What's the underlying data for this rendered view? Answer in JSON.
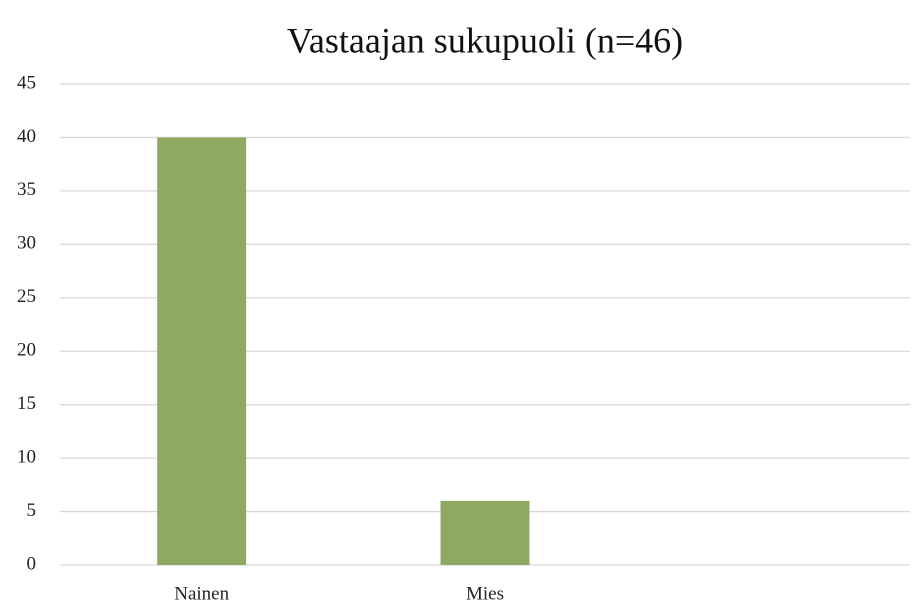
{
  "chart_data": {
    "type": "bar",
    "title": "Vastaajan sukupuoli (n=46)",
    "categories": [
      "Nainen",
      "Mies",
      null
    ],
    "values": [
      40,
      6,
      null
    ],
    "color": "#8eaa62",
    "ylim": [
      0,
      45
    ],
    "yticks": [
      0,
      5,
      10,
      15,
      20,
      25,
      30,
      35,
      40,
      45
    ],
    "grid": true
  }
}
